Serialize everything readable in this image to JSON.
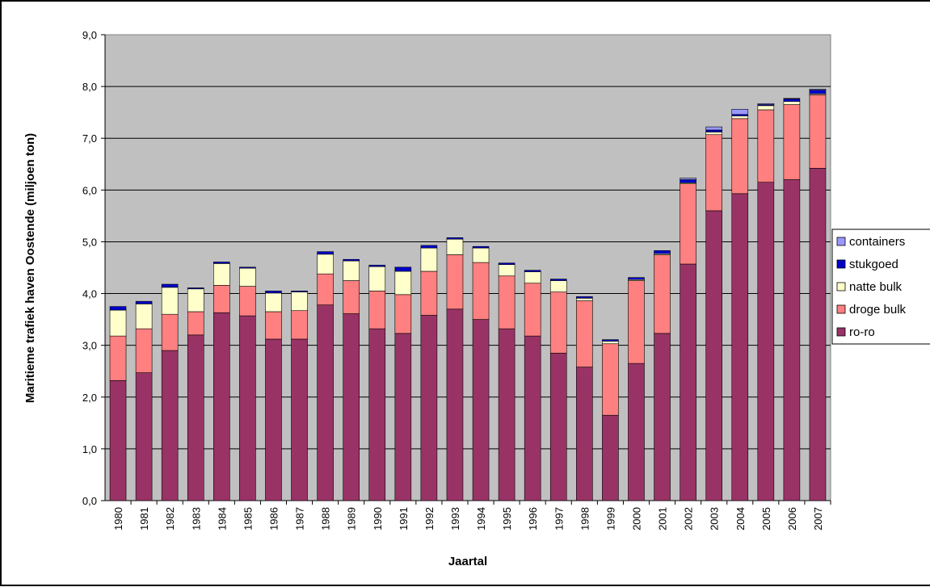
{
  "chart_data": {
    "type": "stacked-bar",
    "y_label": "Maritieme trafiek haven Oostende (miljoen ton)",
    "x_label": "Jaartal",
    "categories": [
      "1980",
      "1981",
      "1982",
      "1983",
      "1984",
      "1985",
      "1986",
      "1987",
      "1988",
      "1989",
      "1990",
      "1991",
      "1992",
      "1993",
      "1994",
      "1995",
      "1996",
      "1997",
      "1998",
      "1999",
      "2000",
      "2001",
      "2002",
      "2003",
      "2004",
      "2005",
      "2006",
      "2007"
    ],
    "series": [
      {
        "name": "ro-ro",
        "color": "#993366",
        "values": [
          2.32,
          2.47,
          2.9,
          3.2,
          3.63,
          3.57,
          3.12,
          3.12,
          3.78,
          3.61,
          3.32,
          3.23,
          3.58,
          3.7,
          3.5,
          3.32,
          3.18,
          2.85,
          2.58,
          1.65,
          2.65,
          3.23,
          4.57,
          5.6,
          5.93,
          6.15,
          6.2,
          6.42
        ]
      },
      {
        "name": "droge bulk",
        "color": "#ff8080",
        "values": [
          0.86,
          0.85,
          0.7,
          0.45,
          0.53,
          0.57,
          0.53,
          0.55,
          0.6,
          0.64,
          0.73,
          0.75,
          0.85,
          1.05,
          1.1,
          1.02,
          1.02,
          1.18,
          1.28,
          1.38,
          1.6,
          1.52,
          1.55,
          1.47,
          1.45,
          1.4,
          1.45,
          1.42
        ]
      },
      {
        "name": "natte bulk",
        "color": "#ffffcc",
        "values": [
          0.5,
          0.48,
          0.52,
          0.44,
          0.42,
          0.35,
          0.36,
          0.36,
          0.38,
          0.38,
          0.47,
          0.45,
          0.45,
          0.3,
          0.28,
          0.22,
          0.22,
          0.22,
          0.05,
          0.05,
          0.02,
          0.02,
          0.02,
          0.05,
          0.05,
          0.08,
          0.06,
          0.02
        ]
      },
      {
        "name": "stukgoed",
        "color": "#0000cc",
        "values": [
          0.07,
          0.05,
          0.06,
          0.02,
          0.03,
          0.02,
          0.04,
          0.02,
          0.05,
          0.03,
          0.03,
          0.08,
          0.05,
          0.03,
          0.03,
          0.03,
          0.03,
          0.03,
          0.03,
          0.03,
          0.04,
          0.06,
          0.06,
          0.04,
          0.03,
          0.02,
          0.05,
          0.07
        ]
      },
      {
        "name": "containers",
        "color": "#9999ff",
        "values": [
          0,
          0,
          0,
          0,
          0,
          0,
          0,
          0,
          0,
          0,
          0,
          0,
          0,
          0,
          0,
          0,
          0,
          0,
          0,
          0,
          0,
          0,
          0.03,
          0.06,
          0.1,
          0.02,
          0.01,
          0.02
        ]
      }
    ],
    "ylim": [
      0,
      9
    ],
    "yticks": [
      {
        "value": 0,
        "label": "0,0"
      },
      {
        "value": 1,
        "label": "1,0"
      },
      {
        "value": 2,
        "label": "2,0"
      },
      {
        "value": 3,
        "label": "3,0"
      },
      {
        "value": 4,
        "label": "4,0"
      },
      {
        "value": 5,
        "label": "5,0"
      },
      {
        "value": 6,
        "label": "6,0"
      },
      {
        "value": 7,
        "label": "7,0"
      },
      {
        "value": 8,
        "label": "8,0"
      },
      {
        "value": 9,
        "label": "9,0"
      }
    ],
    "grid": true,
    "legend": "right"
  }
}
